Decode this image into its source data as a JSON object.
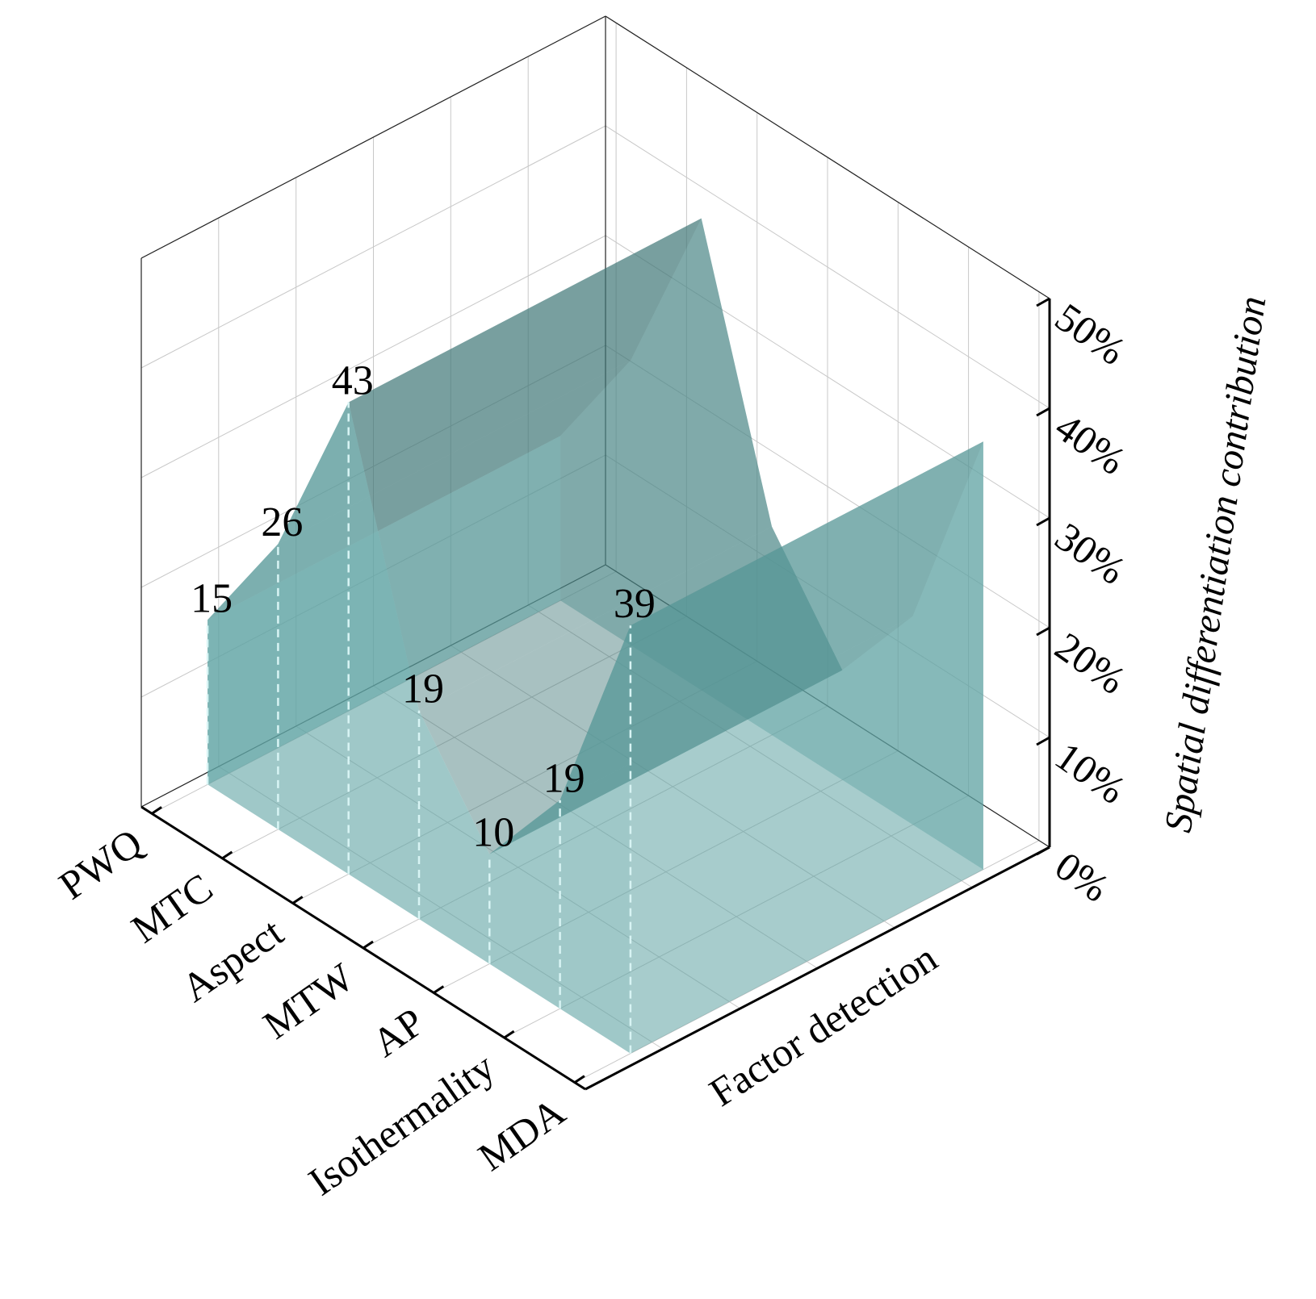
{
  "chart_data": {
    "type": "area3d",
    "categories": [
      "PWQ",
      "MTC",
      "Aspect",
      "MTW",
      "AP",
      "Isothermality",
      "MDA"
    ],
    "values": [
      15,
      26,
      43,
      19,
      10,
      19,
      39
    ],
    "color": "#5fa3a3",
    "depth_label": "Factor detection",
    "zlabel": "Spatial differentiation contribution",
    "zlim": [
      0,
      50
    ],
    "zticks": [
      {
        "value": 0,
        "label": "0%"
      },
      {
        "value": 10,
        "label": "10%"
      },
      {
        "value": 20,
        "label": "20%"
      },
      {
        "value": 30,
        "label": "30%"
      },
      {
        "value": 40,
        "label": "40%"
      },
      {
        "value": 50,
        "label": "50%"
      }
    ],
    "grid": true
  }
}
